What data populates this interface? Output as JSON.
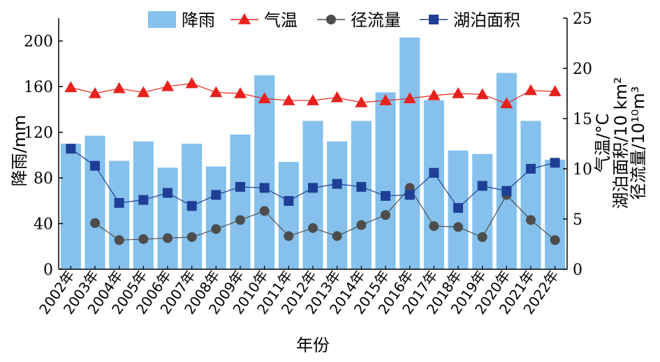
{
  "chart_data": {
    "type": "bar+line",
    "categories": [
      "2002年",
      "2003年",
      "2004年",
      "2005年",
      "2006年",
      "2007年",
      "2008年",
      "2009年",
      "2010年",
      "2011年",
      "2012年",
      "2013年",
      "2014年",
      "2015年",
      "2016年",
      "2017年",
      "2018年",
      "2019年",
      "2020年",
      "2021年",
      "2022年"
    ],
    "xlabel": "年份",
    "ylabel_left": "降雨/mm",
    "ylabel_right": [
      "气温/°C",
      "湖泊面积/10 km²",
      "径流量/10¹⁰m³"
    ],
    "ylim_left": [
      0,
      220
    ],
    "yticks_left": [
      0,
      40,
      80,
      120,
      160,
      200
    ],
    "ylim_right": [
      0,
      25
    ],
    "yticks_right": [
      0,
      5,
      10,
      15,
      20,
      25
    ],
    "series": [
      {
        "name": "降雨",
        "kind": "bar",
        "axis": "left",
        "color": "#85C1EC",
        "values": [
          110,
          117,
          95,
          112,
          89,
          110,
          90,
          118,
          170,
          94,
          130,
          112,
          130,
          155,
          203,
          148,
          104,
          101,
          172,
          130,
          96
        ]
      },
      {
        "name": "气温",
        "kind": "line",
        "marker": "triangle",
        "axis": "right",
        "color": "#E8211D",
        "values": [
          18.1,
          17.5,
          18.0,
          17.6,
          18.2,
          18.5,
          17.6,
          17.5,
          17.0,
          16.8,
          16.8,
          17.1,
          16.6,
          16.8,
          17.0,
          17.3,
          17.5,
          17.4,
          16.5,
          17.8,
          17.7
        ]
      },
      {
        "name": "径流量",
        "kind": "line",
        "marker": "circle",
        "axis": "right",
        "color": "#4D4D4D",
        "values": [
          null,
          4.6,
          2.9,
          3.0,
          3.1,
          3.2,
          4.0,
          4.9,
          5.8,
          3.3,
          4.1,
          3.3,
          4.4,
          5.4,
          8.1,
          4.3,
          4.2,
          3.2,
          7.4,
          4.9,
          2.9
        ]
      },
      {
        "name": "湖泊面积",
        "kind": "line",
        "marker": "square",
        "axis": "right",
        "color": "#1F3E95",
        "values": [
          12.0,
          10.3,
          6.6,
          6.9,
          7.6,
          6.3,
          7.4,
          8.2,
          8.1,
          6.8,
          8.1,
          8.5,
          8.2,
          7.3,
          7.4,
          9.6,
          6.1,
          8.3,
          7.8,
          10.0,
          10.6
        ]
      }
    ]
  }
}
